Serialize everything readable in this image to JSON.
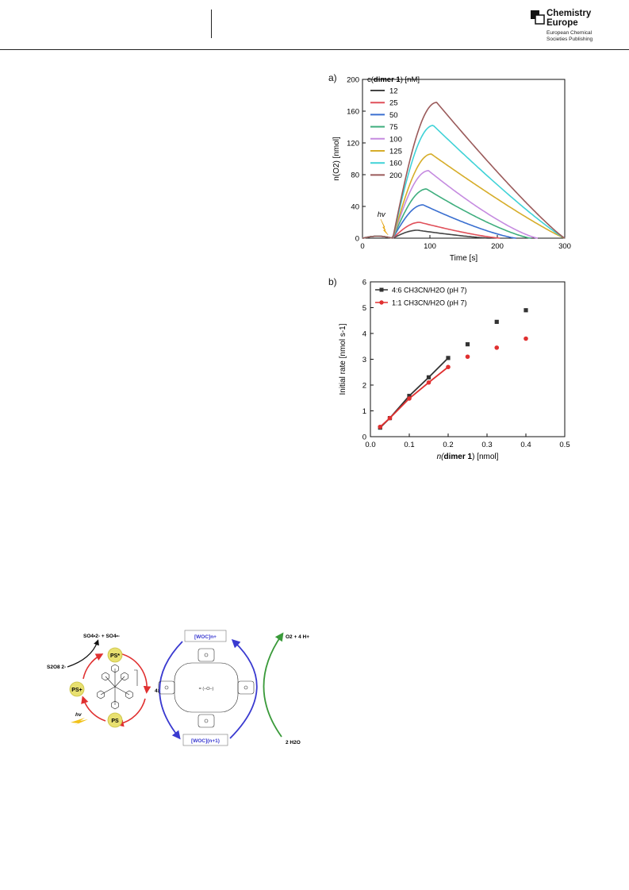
{
  "header": {
    "logo_line1": "Chemistry",
    "logo_line2": "Europe",
    "logo_sub1": "European Chemical",
    "logo_sub2": "Societies Publishing"
  },
  "chart_data": [
    {
      "type": "line",
      "panel_label": "a)",
      "xlabel": "Time [s]",
      "ylabel": "n(O2) [nmol]",
      "xlim": [
        0,
        300
      ],
      "ylim": [
        0,
        200
      ],
      "xticks": [
        0,
        100,
        200,
        300
      ],
      "yticks": [
        0,
        40,
        80,
        120,
        160,
        200
      ],
      "legend_title_pre": "c(",
      "legend_title_bold": "dimer 1",
      "legend_title_post": ") [nM]",
      "legend_placement": "top-left",
      "annotation": "hv",
      "series": [
        {
          "name": "12",
          "color": "#444444",
          "peak": 10,
          "tpeak": 82,
          "tend": 190
        },
        {
          "name": "25",
          "color": "#e0505a",
          "peak": 20,
          "tpeak": 85,
          "tend": 205
        },
        {
          "name": "50",
          "color": "#3a6fd0",
          "peak": 42,
          "tpeak": 90,
          "tend": 228
        },
        {
          "name": "75",
          "color": "#3fae7e",
          "peak": 62,
          "tpeak": 95,
          "tend": 250
        },
        {
          "name": "100",
          "color": "#c58be0",
          "peak": 85,
          "tpeak": 98,
          "tend": 260
        },
        {
          "name": "125",
          "color": "#d6ad2a",
          "peak": 106,
          "tpeak": 102,
          "tend": 300
        },
        {
          "name": "160",
          "color": "#3fd2d7",
          "peak": 142,
          "tpeak": 105,
          "tend": 300
        },
        {
          "name": "200",
          "color": "#9a5a5a",
          "peak": 171,
          "tpeak": 110,
          "tend": 300
        }
      ]
    },
    {
      "type": "scatter",
      "panel_label": "b)",
      "xlabel_pre": "n(",
      "xlabel_bold": "dimer 1",
      "xlabel_post": ") [nmol]",
      "ylabel": "Initial rate [nmol s-1]",
      "xlim": [
        0,
        0.5
      ],
      "ylim": [
        0,
        6
      ],
      "xticks": [
        "0.0",
        "0.1",
        "0.2",
        "0.3",
        "0.4",
        "0.5"
      ],
      "yticks": [
        "0",
        "1",
        "2",
        "3",
        "4",
        "5",
        "6"
      ],
      "legend_placement": "top-left",
      "series": [
        {
          "name": "4:6 CH3CN/H2O (pH 7)",
          "color": "#333333",
          "marker": "square",
          "x": [
            0.025,
            0.05,
            0.1,
            0.15,
            0.2,
            0.25,
            0.325,
            0.4
          ],
          "y": [
            0.35,
            0.72,
            1.58,
            2.3,
            3.05,
            3.58,
            4.45,
            4.9
          ],
          "fit_x": [
            0.025,
            0.2
          ]
        },
        {
          "name": "1:1 CH3CN/H2O (pH 7)",
          "color": "#e03030",
          "marker": "circle",
          "x": [
            0.025,
            0.05,
            0.1,
            0.15,
            0.2,
            0.25,
            0.325,
            0.4
          ],
          "y": [
            0.38,
            0.72,
            1.48,
            2.1,
            2.7,
            3.1,
            3.45,
            3.8
          ],
          "fit_x": [
            0.025,
            0.2
          ]
        }
      ]
    }
  ],
  "scheme": {
    "top_products": "SO4•2- + SO4•-",
    "persulfate": "S2O8 2-",
    "ps_star": "PS*",
    "ps_plus": "PS+",
    "ps": "PS",
    "hv": "hv",
    "times4": "4x",
    "woc_top": "[WOC]n+",
    "woc_bottom": "[WOC](n+1)",
    "o2": "O2 + 4 H+",
    "water": "2 H2O",
    "colors": {
      "red": "#e03030",
      "blue": "#3a3ad0",
      "green": "#3a9a3a",
      "ps_fill": "#e8e070"
    }
  }
}
